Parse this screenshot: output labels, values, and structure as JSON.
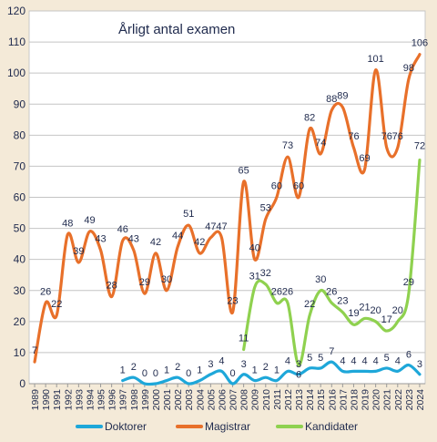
{
  "chart_data": {
    "type": "line",
    "title": "Årligt antal examen",
    "xlabel": "",
    "ylabel": "",
    "ylim": [
      0,
      120
    ],
    "yticks": [
      0,
      10,
      20,
      30,
      40,
      50,
      60,
      70,
      80,
      90,
      100,
      110,
      120
    ],
    "grid": true,
    "legend_position": "bottom",
    "x": [
      "1989",
      "1990",
      "1991",
      "1992",
      "1993",
      "1994",
      "1995",
      "1996",
      "1997",
      "1998",
      "1999",
      "2000",
      "2001",
      "2002",
      "2003",
      "2004",
      "2005",
      "2006",
      "2007",
      "2008",
      "2009",
      "2010",
      "2011",
      "2012",
      "2013",
      "2014",
      "2015",
      "2016",
      "2017",
      "2018",
      "2019",
      "2020",
      "2021",
      "2022",
      "2023",
      "2024"
    ],
    "series": [
      {
        "name": "Doktorer",
        "color": "#1ea7d9",
        "values": [
          null,
          null,
          null,
          null,
          null,
          null,
          null,
          null,
          1,
          2,
          0,
          0,
          1,
          2,
          0,
          1,
          3,
          4,
          0,
          3,
          1,
          2,
          1,
          4,
          3,
          5,
          5,
          7,
          4,
          4,
          4,
          4,
          5,
          4,
          6,
          3
        ]
      },
      {
        "name": "Magistrar",
        "color": "#e8702a",
        "values": [
          7,
          26,
          22,
          48,
          39,
          49,
          43,
          28,
          46,
          43,
          29,
          42,
          30,
          44,
          51,
          42,
          47,
          47,
          23,
          65,
          40,
          53,
          60,
          73,
          60,
          82,
          74,
          88,
          89,
          76,
          69,
          101,
          76,
          76,
          98,
          106
        ]
      },
      {
        "name": "Kandidater",
        "color": "#8fd14f",
        "values": [
          null,
          null,
          null,
          null,
          null,
          null,
          null,
          null,
          null,
          null,
          null,
          null,
          null,
          null,
          null,
          null,
          null,
          null,
          null,
          11,
          31,
          32,
          26,
          26,
          6,
          22,
          30,
          26,
          23,
          19,
          21,
          20,
          17,
          20,
          29,
          72
        ]
      }
    ],
    "data_labels": {
      "Doktorer": [
        null,
        null,
        null,
        null,
        null,
        null,
        null,
        null,
        "1",
        "2",
        "0",
        "0",
        "1",
        "2",
        "0",
        "1",
        "3",
        "4",
        "0",
        "3",
        "1",
        "2",
        "1",
        "4",
        "3",
        "5",
        "5",
        "7",
        "4",
        "4",
        "4",
        "4",
        "5",
        "4",
        "6",
        "3"
      ],
      "Magistrar": [
        "7",
        "26",
        "22",
        "48",
        "39",
        "49",
        "43",
        "28",
        "46",
        "43",
        "29",
        "42",
        "30",
        "44",
        "51",
        "42",
        "47",
        "47",
        "23",
        "65",
        "40",
        "53",
        "60",
        "73",
        "60",
        "82",
        "74",
        "88",
        "89",
        "76",
        "69",
        "101",
        "76",
        "76",
        "98",
        "106"
      ],
      "Kandidater": [
        null,
        null,
        null,
        null,
        null,
        null,
        null,
        null,
        null,
        null,
        null,
        null,
        null,
        null,
        null,
        null,
        null,
        null,
        null,
        "11",
        "31",
        "32",
        "26",
        "26",
        "6",
        "22",
        "30",
        "26",
        "23",
        "19",
        "21",
        "20",
        "17",
        "20",
        "29",
        "72"
      ]
    }
  }
}
